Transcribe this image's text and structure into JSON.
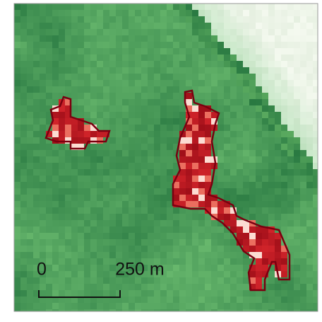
{
  "scale_bar": {
    "start_label": "0",
    "end_label": "250 m"
  }
}
